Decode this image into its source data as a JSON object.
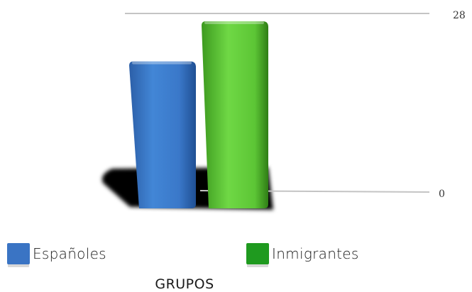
{
  "chart_data": {
    "type": "bar",
    "title": "",
    "xlabel": "GRUPOS",
    "ylabel": "",
    "categories": [
      "Españoles",
      "Inmigrantes"
    ],
    "values": [
      22,
      28
    ],
    "ylim": [
      0,
      28
    ],
    "yticks": [
      "0",
      "28"
    ],
    "colors": [
      "#3a78c9",
      "#5cc535"
    ],
    "legend": [
      {
        "label": "Españoles",
        "color": "#3a74c4"
      },
      {
        "label": "Inmigrantes",
        "color": "#1f9a1f"
      }
    ],
    "legend_position": "bottom",
    "grid": false,
    "style": "3d"
  }
}
